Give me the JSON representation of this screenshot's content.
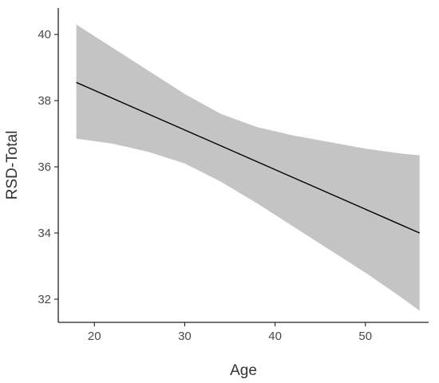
{
  "chart_data": {
    "type": "line",
    "title": "",
    "xlabel": "Age",
    "ylabel": "RSD-Total",
    "xlim": [
      16,
      57
    ],
    "ylim": [
      31.3,
      40.8
    ],
    "x_ticks": [
      20,
      30,
      40,
      50
    ],
    "y_ticks": [
      32,
      34,
      36,
      38,
      40
    ],
    "grid": false,
    "series": [
      {
        "x": [
          18,
          56
        ],
        "y": [
          38.55,
          34.0
        ],
        "color": "#000000"
      }
    ],
    "confidence_band": {
      "color": "#c4c4c4",
      "x": [
        18,
        22,
        26,
        30,
        34,
        38,
        42,
        46,
        50,
        54,
        56
      ],
      "upper": [
        40.3,
        39.6,
        38.9,
        38.2,
        37.6,
        37.2,
        36.95,
        36.75,
        36.55,
        36.4,
        36.35
      ],
      "lower": [
        36.85,
        36.7,
        36.45,
        36.1,
        35.55,
        34.9,
        34.2,
        33.5,
        32.8,
        32.05,
        31.65
      ]
    }
  }
}
